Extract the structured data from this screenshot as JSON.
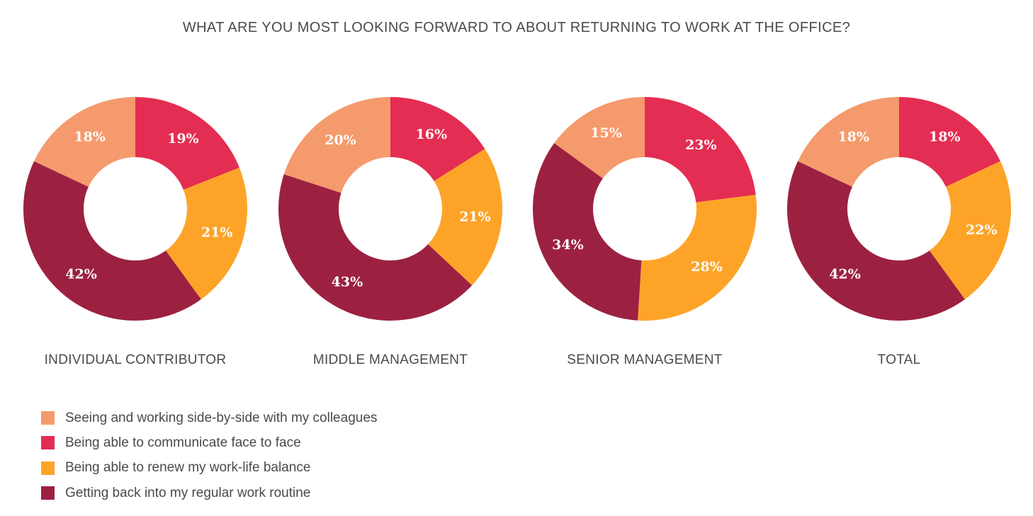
{
  "title": "WHAT ARE YOU MOST LOOKING FORWARD TO ABOUT RETURNING TO WORK AT THE OFFICE?",
  "colors": {
    "seeing": "#f59a6c",
    "communicate": "#e42d52",
    "balance": "#fda428",
    "routine": "#9c2141"
  },
  "legend": [
    {
      "key": "seeing",
      "label": "Seeing and working side-by-side with my colleagues"
    },
    {
      "key": "communicate",
      "label": "Being able to communicate face to face"
    },
    {
      "key": "balance",
      "label": "Being able to renew my work-life balance"
    },
    {
      "key": "routine",
      "label": "Getting back into my regular work routine"
    }
  ],
  "chart_data": [
    {
      "type": "pie",
      "name": "INDIVIDUAL CONTRIBUTOR",
      "categories": [
        "communicate",
        "balance",
        "routine",
        "seeing"
      ],
      "values": [
        19,
        21,
        42,
        18
      ],
      "labels": [
        "19%",
        "21%",
        "42%",
        "18%"
      ]
    },
    {
      "type": "pie",
      "name": "MIDDLE MANAGEMENT",
      "categories": [
        "communicate",
        "balance",
        "routine",
        "seeing"
      ],
      "values": [
        16,
        21,
        43,
        20
      ],
      "labels": [
        "16%",
        "21%",
        "43%",
        "20%"
      ]
    },
    {
      "type": "pie",
      "name": "SENIOR MANAGEMENT",
      "categories": [
        "communicate",
        "balance",
        "routine",
        "seeing"
      ],
      "values": [
        23,
        28,
        34,
        15
      ],
      "labels": [
        "23%",
        "28%",
        "34%",
        "15%"
      ]
    },
    {
      "type": "pie",
      "name": "TOTAL",
      "categories": [
        "communicate",
        "balance",
        "routine",
        "seeing"
      ],
      "values": [
        18,
        22,
        42,
        18
      ],
      "labels": [
        "18%",
        "22%",
        "42%",
        "18%"
      ]
    }
  ]
}
